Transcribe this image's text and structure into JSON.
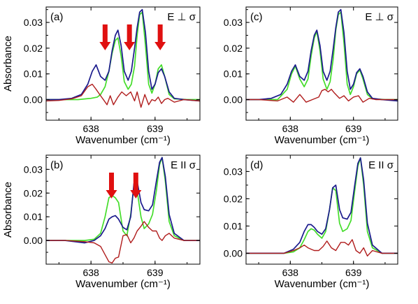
{
  "colors": {
    "measured": "#1a1a8c",
    "model": "#44dd2a",
    "difference": "#b01c1c",
    "arrow": "#e01010"
  },
  "chart_data": [
    {
      "type": "line",
      "panel": "(a)",
      "annotation": "E ⊥ σ",
      "xlabel": "Wavenumber (cm⁻¹)",
      "ylabel": "Absorbance",
      "xlim": [
        637.3,
        639.7
      ],
      "ylim": [
        -0.008,
        0.036
      ],
      "xticks": [
        "638",
        "639"
      ],
      "yticks": [
        "0.00",
        "0.01",
        "0.02",
        "0.03"
      ],
      "arrows_at_x": [
        638.22,
        638.6,
        639.08
      ],
      "series": [
        {
          "color_key": "measured",
          "x": [
            637.3,
            637.5,
            637.7,
            637.85,
            637.95,
            638.02,
            638.08,
            638.15,
            638.22,
            638.28,
            638.33,
            638.38,
            638.42,
            638.47,
            638.52,
            638.58,
            638.63,
            638.68,
            638.72,
            638.76,
            638.8,
            638.85,
            638.9,
            638.95,
            639.0,
            639.05,
            639.1,
            639.15,
            639.22,
            639.3,
            639.45,
            639.7
          ],
          "y": [
            0.0,
            0.0,
            0.0005,
            0.002,
            0.006,
            0.011,
            0.0135,
            0.009,
            0.0075,
            0.011,
            0.019,
            0.025,
            0.027,
            0.021,
            0.011,
            0.0075,
            0.011,
            0.02,
            0.028,
            0.034,
            0.035,
            0.026,
            0.011,
            0.004,
            0.006,
            0.0105,
            0.012,
            0.009,
            0.003,
            0.0005,
            0.0,
            -0.0005
          ]
        },
        {
          "color_key": "model",
          "x": [
            637.3,
            637.5,
            637.8,
            638.0,
            638.1,
            638.15,
            638.22,
            638.28,
            638.33,
            638.38,
            638.42,
            638.47,
            638.52,
            638.58,
            638.63,
            638.68,
            638.72,
            638.76,
            638.8,
            638.85,
            638.9,
            638.95,
            639.0,
            639.05,
            639.1,
            639.15,
            639.22,
            639.3,
            639.5,
            639.7
          ],
          "y": [
            0.0,
            0.0,
            0.0,
            0.0005,
            0.001,
            0.002,
            0.005,
            0.011,
            0.018,
            0.023,
            0.024,
            0.017,
            0.007,
            0.004,
            0.006,
            0.013,
            0.025,
            0.033,
            0.034,
            0.021,
            0.006,
            0.0025,
            0.006,
            0.012,
            0.0135,
            0.009,
            0.002,
            0.0003,
            0.0,
            0.0
          ]
        },
        {
          "color_key": "difference",
          "x": [
            637.3,
            637.5,
            637.7,
            637.85,
            637.95,
            638.02,
            638.08,
            638.15,
            638.2,
            638.25,
            638.3,
            638.35,
            638.42,
            638.48,
            638.55,
            638.62,
            638.68,
            638.72,
            638.78,
            638.84,
            638.9,
            638.95,
            639.0,
            639.05,
            639.1,
            639.15,
            639.2,
            639.3,
            639.45,
            639.7
          ],
          "y": [
            -0.0005,
            -0.0003,
            0.0003,
            0.0015,
            0.005,
            0.006,
            0.004,
            0.0015,
            -0.0002,
            -0.002,
            0.0015,
            -0.002,
            0.001,
            0.003,
            0.0015,
            0.003,
            -0.0005,
            0.003,
            -0.003,
            0.002,
            -0.002,
            0.0,
            -0.0005,
            0.001,
            -0.0015,
            0.0,
            0.0005,
            -0.001,
            0.0,
            -0.0005
          ]
        }
      ]
    },
    {
      "type": "line",
      "panel": "(c)",
      "annotation": "E ⊥ σ",
      "xlabel": "Wavenumber (cm⁻¹)",
      "ylabel": "",
      "xlim": [
        637.3,
        639.7
      ],
      "ylim": [
        -0.008,
        0.036
      ],
      "xticks": [
        "638",
        "639"
      ],
      "yticks": [
        "0.00",
        "0.01",
        "0.02",
        "0.03"
      ],
      "series": [
        {
          "color_key": "measured",
          "x": [
            637.3,
            637.5,
            637.7,
            637.85,
            637.95,
            638.02,
            638.08,
            638.15,
            638.22,
            638.28,
            638.33,
            638.38,
            638.42,
            638.47,
            638.52,
            638.58,
            638.63,
            638.68,
            638.72,
            638.76,
            638.8,
            638.85,
            638.9,
            638.95,
            639.0,
            639.05,
            639.1,
            639.15,
            639.22,
            639.3,
            639.45,
            639.7
          ],
          "y": [
            0.0,
            0.0,
            0.0005,
            0.002,
            0.006,
            0.011,
            0.0135,
            0.009,
            0.0075,
            0.011,
            0.019,
            0.025,
            0.027,
            0.021,
            0.011,
            0.0075,
            0.011,
            0.02,
            0.028,
            0.034,
            0.035,
            0.026,
            0.011,
            0.004,
            0.006,
            0.0105,
            0.012,
            0.009,
            0.003,
            0.0005,
            0.0,
            -0.0005
          ]
        },
        {
          "color_key": "model",
          "x": [
            637.3,
            637.5,
            637.8,
            637.95,
            638.02,
            638.08,
            638.15,
            638.22,
            638.28,
            638.33,
            638.38,
            638.42,
            638.47,
            638.52,
            638.58,
            638.63,
            638.68,
            638.72,
            638.76,
            638.8,
            638.85,
            638.9,
            638.95,
            639.0,
            639.05,
            639.1,
            639.15,
            639.22,
            639.3,
            639.5,
            639.7
          ],
          "y": [
            0.0,
            0.0,
            0.0,
            0.004,
            0.01,
            0.013,
            0.008,
            0.005,
            0.008,
            0.017,
            0.024,
            0.0265,
            0.019,
            0.008,
            0.004,
            0.007,
            0.016,
            0.027,
            0.033,
            0.034,
            0.022,
            0.006,
            0.002,
            0.005,
            0.01,
            0.0115,
            0.008,
            0.002,
            0.0003,
            0.0,
            0.0
          ]
        },
        {
          "color_key": "difference",
          "x": [
            637.3,
            637.5,
            637.8,
            637.95,
            638.05,
            638.15,
            638.25,
            638.35,
            638.45,
            638.5,
            638.55,
            638.6,
            638.65,
            638.7,
            638.78,
            638.85,
            638.92,
            639.0,
            639.08,
            639.15,
            639.25,
            639.35,
            639.5,
            639.7
          ],
          "y": [
            0.0,
            0.0,
            -0.0005,
            0.001,
            -0.001,
            0.002,
            -0.001,
            0.0,
            0.001,
            0.0035,
            0.004,
            0.003,
            0.004,
            0.0025,
            0.0005,
            0.0015,
            -0.0005,
            0.001,
            0.0015,
            -0.001,
            0.0005,
            0.0,
            0.0,
            0.0
          ]
        }
      ]
    },
    {
      "type": "line",
      "panel": "(b)",
      "annotation": "E II σ",
      "xlabel": "Wavenumber (cm⁻¹)",
      "ylabel": "Absorbance",
      "xlim": [
        637.3,
        639.7
      ],
      "ylim": [
        -0.01,
        0.036
      ],
      "xticks": [
        "638",
        "639"
      ],
      "yticks": [
        "0.00",
        "0.01",
        "0.02",
        "0.03"
      ],
      "arrows_at_x": [
        638.32,
        638.7
      ],
      "series": [
        {
          "color_key": "measured",
          "x": [
            637.3,
            637.6,
            637.9,
            638.05,
            638.15,
            638.22,
            638.28,
            638.33,
            638.38,
            638.43,
            638.5,
            638.56,
            638.62,
            638.67,
            638.72,
            638.78,
            638.83,
            638.9,
            638.96,
            639.02,
            639.07,
            639.11,
            639.16,
            639.22,
            639.3,
            639.45,
            639.7
          ],
          "y": [
            0.0,
            0.0,
            -0.001,
            0.0,
            0.002,
            0.005,
            0.009,
            0.01,
            0.0105,
            0.009,
            0.0055,
            0.0045,
            0.01,
            0.024,
            0.025,
            0.016,
            0.013,
            0.0125,
            0.015,
            0.025,
            0.033,
            0.035,
            0.027,
            0.011,
            0.003,
            0.0,
            0.0
          ]
        },
        {
          "color_key": "model",
          "x": [
            637.3,
            637.6,
            637.9,
            638.05,
            638.15,
            638.22,
            638.28,
            638.33,
            638.38,
            638.43,
            638.5,
            638.56,
            638.62,
            638.67,
            638.72,
            638.78,
            638.83,
            638.9,
            638.96,
            639.02,
            639.07,
            639.11,
            639.16,
            639.22,
            639.3,
            639.45,
            639.7
          ],
          "y": [
            0.0,
            0.0,
            0.0,
            0.0005,
            0.003,
            0.01,
            0.018,
            0.019,
            0.018,
            0.016,
            0.004,
            0.002,
            0.011,
            0.023,
            0.021,
            0.01,
            0.005,
            0.007,
            0.011,
            0.021,
            0.032,
            0.035,
            0.025,
            0.008,
            0.002,
            0.0,
            0.0
          ]
        },
        {
          "color_key": "difference",
          "x": [
            637.3,
            637.6,
            637.9,
            638.05,
            638.15,
            638.22,
            638.28,
            638.33,
            638.38,
            638.43,
            638.5,
            638.56,
            638.62,
            638.67,
            638.72,
            638.78,
            638.83,
            638.9,
            638.96,
            639.02,
            639.07,
            639.11,
            639.16,
            639.22,
            639.3,
            639.45,
            639.7
          ],
          "y": [
            0.0,
            0.0,
            -0.0005,
            -0.001,
            -0.0025,
            -0.006,
            -0.009,
            -0.0095,
            -0.0075,
            -0.007,
            0.002,
            0.0025,
            -0.001,
            0.001,
            0.004,
            0.006,
            0.008,
            0.0055,
            0.004,
            0.004,
            0.001,
            0.0,
            0.002,
            0.003,
            0.001,
            0.0,
            0.0
          ]
        }
      ]
    },
    {
      "type": "line",
      "panel": "(d)",
      "annotation": "E II σ",
      "xlabel": "Wavenumber (cm⁻¹)",
      "ylabel": "",
      "xlim": [
        637.3,
        639.7
      ],
      "ylim": [
        -0.004,
        0.036
      ],
      "xticks": [
        "638",
        "639"
      ],
      "yticks": [
        "0.00",
        "0.01",
        "0.02",
        "0.03"
      ],
      "series": [
        {
          "color_key": "measured",
          "x": [
            637.3,
            637.6,
            637.9,
            638.05,
            638.15,
            638.22,
            638.28,
            638.33,
            638.38,
            638.43,
            638.5,
            638.56,
            638.62,
            638.67,
            638.72,
            638.78,
            638.83,
            638.9,
            638.96,
            639.02,
            639.07,
            639.11,
            639.16,
            639.22,
            639.3,
            639.45,
            639.7
          ],
          "y": [
            0.0,
            0.0,
            0.0,
            0.0015,
            0.004,
            0.008,
            0.0105,
            0.0105,
            0.0095,
            0.008,
            0.007,
            0.009,
            0.016,
            0.024,
            0.025,
            0.016,
            0.013,
            0.0125,
            0.015,
            0.025,
            0.033,
            0.035,
            0.027,
            0.011,
            0.003,
            0.0,
            0.0
          ]
        },
        {
          "color_key": "model",
          "x": [
            637.3,
            637.6,
            637.9,
            638.05,
            638.15,
            638.22,
            638.28,
            638.33,
            638.38,
            638.43,
            638.5,
            638.56,
            638.62,
            638.67,
            638.72,
            638.78,
            638.83,
            638.9,
            638.96,
            639.02,
            639.07,
            639.11,
            639.16,
            639.22,
            639.3,
            639.45,
            639.7
          ],
          "y": [
            0.0,
            0.0,
            0.0,
            0.0005,
            0.002,
            0.005,
            0.008,
            0.009,
            0.0085,
            0.007,
            0.0055,
            0.008,
            0.016,
            0.024,
            0.023,
            0.011,
            0.008,
            0.009,
            0.012,
            0.023,
            0.032,
            0.035,
            0.025,
            0.008,
            0.002,
            0.0,
            0.0
          ]
        },
        {
          "color_key": "difference",
          "x": [
            637.3,
            637.6,
            637.9,
            638.05,
            638.15,
            638.22,
            638.28,
            638.33,
            638.38,
            638.45,
            638.52,
            638.58,
            638.65,
            638.72,
            638.8,
            638.86,
            638.92,
            638.98,
            639.04,
            639.1,
            639.16,
            639.22,
            639.3,
            639.45,
            639.7
          ],
          "y": [
            0.0,
            0.0,
            0.0,
            0.001,
            0.002,
            0.003,
            0.002,
            0.0015,
            0.001,
            0.001,
            0.0025,
            0.0045,
            0.002,
            0.001,
            0.004,
            0.004,
            0.003,
            0.005,
            0.001,
            0.0,
            0.002,
            -0.001,
            0.001,
            0.0,
            0.0
          ]
        }
      ]
    }
  ]
}
